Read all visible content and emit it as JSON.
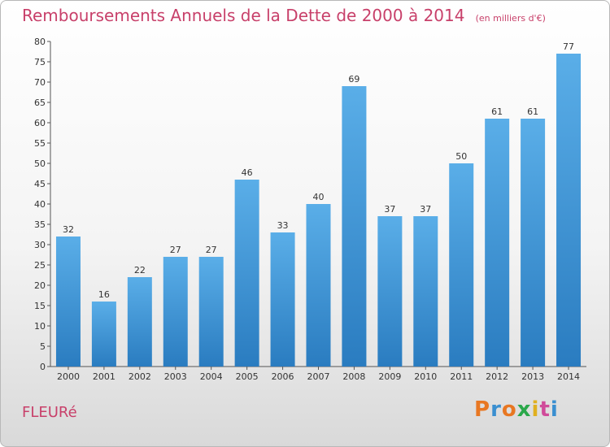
{
  "chart_data": {
    "type": "bar",
    "title": "Remboursements Annuels de la Dette de 2000 à 2014",
    "subtitle": "(en milliers d'€)",
    "categories": [
      "2000",
      "2001",
      "2002",
      "2003",
      "2004",
      "2005",
      "2006",
      "2007",
      "2008",
      "2009",
      "2010",
      "2011",
      "2012",
      "2013",
      "2014"
    ],
    "values": [
      32,
      16,
      22,
      27,
      27,
      46,
      33,
      40,
      69,
      37,
      37,
      50,
      61,
      61,
      77
    ],
    "ylim": [
      0,
      80
    ],
    "yticks": [
      0,
      5,
      10,
      15,
      20,
      25,
      30,
      35,
      40,
      45,
      50,
      55,
      60,
      65,
      70,
      75,
      80
    ],
    "grid": false,
    "bar_color_top": "#5aaee8",
    "bar_color_bottom": "#2a7cc0"
  },
  "footer": {
    "commune": "FLEURé",
    "logo": "Proxiti"
  },
  "colors": {
    "title": "#c8406a",
    "logo_letters": [
      "#e87722",
      "#3a8fd0",
      "#e87722",
      "#2aa84a",
      "#e0b020",
      "#d04a9a",
      "#3a8fd0"
    ]
  }
}
